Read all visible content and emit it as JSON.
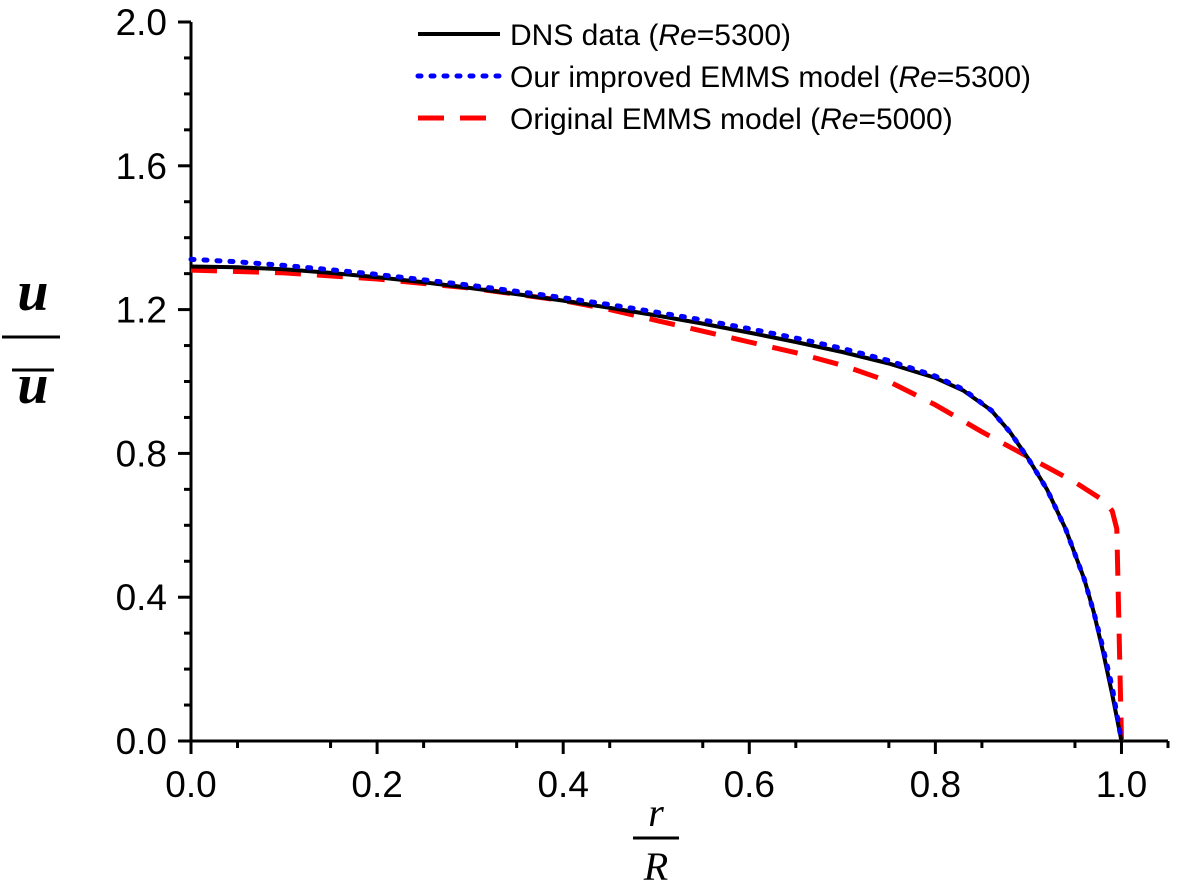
{
  "chart_data": {
    "type": "line",
    "title": "",
    "x_label": {
      "numerator": "r",
      "denominator": "R"
    },
    "y_label": {
      "numerator": "u",
      "denominator": "u"
    },
    "xlim": [
      0.0,
      1.05
    ],
    "ylim": [
      0.0,
      2.0
    ],
    "x_ticks": [
      "0.0",
      "0.2",
      "0.4",
      "0.6",
      "0.8",
      "1.0"
    ],
    "y_ticks": [
      "0.0",
      "0.4",
      "0.8",
      "1.2",
      "1.6",
      "2.0"
    ],
    "grid": false,
    "legend_position": "top-right",
    "series": [
      {
        "name": "DNS data (Re=5300)",
        "legend": {
          "prefix": "DNS data (",
          "italic": "Re",
          "suffix": "=5300)"
        },
        "style": "solid",
        "color": "#000000",
        "x": [
          0.0,
          0.05,
          0.1,
          0.15,
          0.2,
          0.25,
          0.3,
          0.35,
          0.4,
          0.45,
          0.5,
          0.55,
          0.6,
          0.65,
          0.7,
          0.75,
          0.8,
          0.83,
          0.86,
          0.88,
          0.9,
          0.92,
          0.94,
          0.96,
          0.97,
          0.98,
          0.99,
          1.0
        ],
        "y": [
          1.32,
          1.318,
          1.312,
          1.302,
          1.29,
          1.276,
          1.26,
          1.243,
          1.225,
          1.205,
          1.184,
          1.161,
          1.136,
          1.11,
          1.082,
          1.05,
          1.01,
          0.975,
          0.92,
          0.86,
          0.785,
          0.7,
          0.59,
          0.45,
          0.36,
          0.25,
          0.13,
          0.0
        ]
      },
      {
        "name": "Our improved EMMS model (Re=5300)",
        "legend": {
          "prefix": "Our improved EMMS model (",
          "italic": "Re",
          "suffix": "=5300)"
        },
        "style": "dotted",
        "color": "#0000ff",
        "x": [
          0.0,
          0.05,
          0.1,
          0.15,
          0.2,
          0.25,
          0.3,
          0.35,
          0.4,
          0.45,
          0.5,
          0.55,
          0.6,
          0.65,
          0.7,
          0.75,
          0.8,
          0.83,
          0.86,
          0.88,
          0.9,
          0.92,
          0.94,
          0.96,
          0.97,
          0.98,
          0.99,
          1.0
        ],
        "y": [
          1.34,
          1.333,
          1.323,
          1.311,
          1.298,
          1.283,
          1.268,
          1.251,
          1.233,
          1.214,
          1.193,
          1.171,
          1.147,
          1.121,
          1.092,
          1.058,
          1.015,
          0.978,
          0.92,
          0.86,
          0.785,
          0.7,
          0.59,
          0.45,
          0.36,
          0.26,
          0.15,
          0.0
        ]
      },
      {
        "name": "Original EMMS model (Re=5000)",
        "legend": {
          "prefix": "Original EMMS model (",
          "italic": "Re",
          "suffix": "=5000)"
        },
        "style": "dashed",
        "color": "#ff0000",
        "x": [
          0.0,
          0.1,
          0.2,
          0.3,
          0.4,
          0.45,
          0.5,
          0.55,
          0.6,
          0.65,
          0.7,
          0.75,
          0.8,
          0.85,
          0.9,
          0.95,
          0.98,
          0.99,
          0.995,
          1.0
        ],
        "y": [
          1.31,
          1.302,
          1.285,
          1.26,
          1.225,
          1.2,
          1.17,
          1.14,
          1.11,
          1.08,
          1.045,
          1.0,
          0.935,
          0.86,
          0.79,
          0.72,
          0.67,
          0.64,
          0.59,
          0.0
        ]
      }
    ]
  }
}
